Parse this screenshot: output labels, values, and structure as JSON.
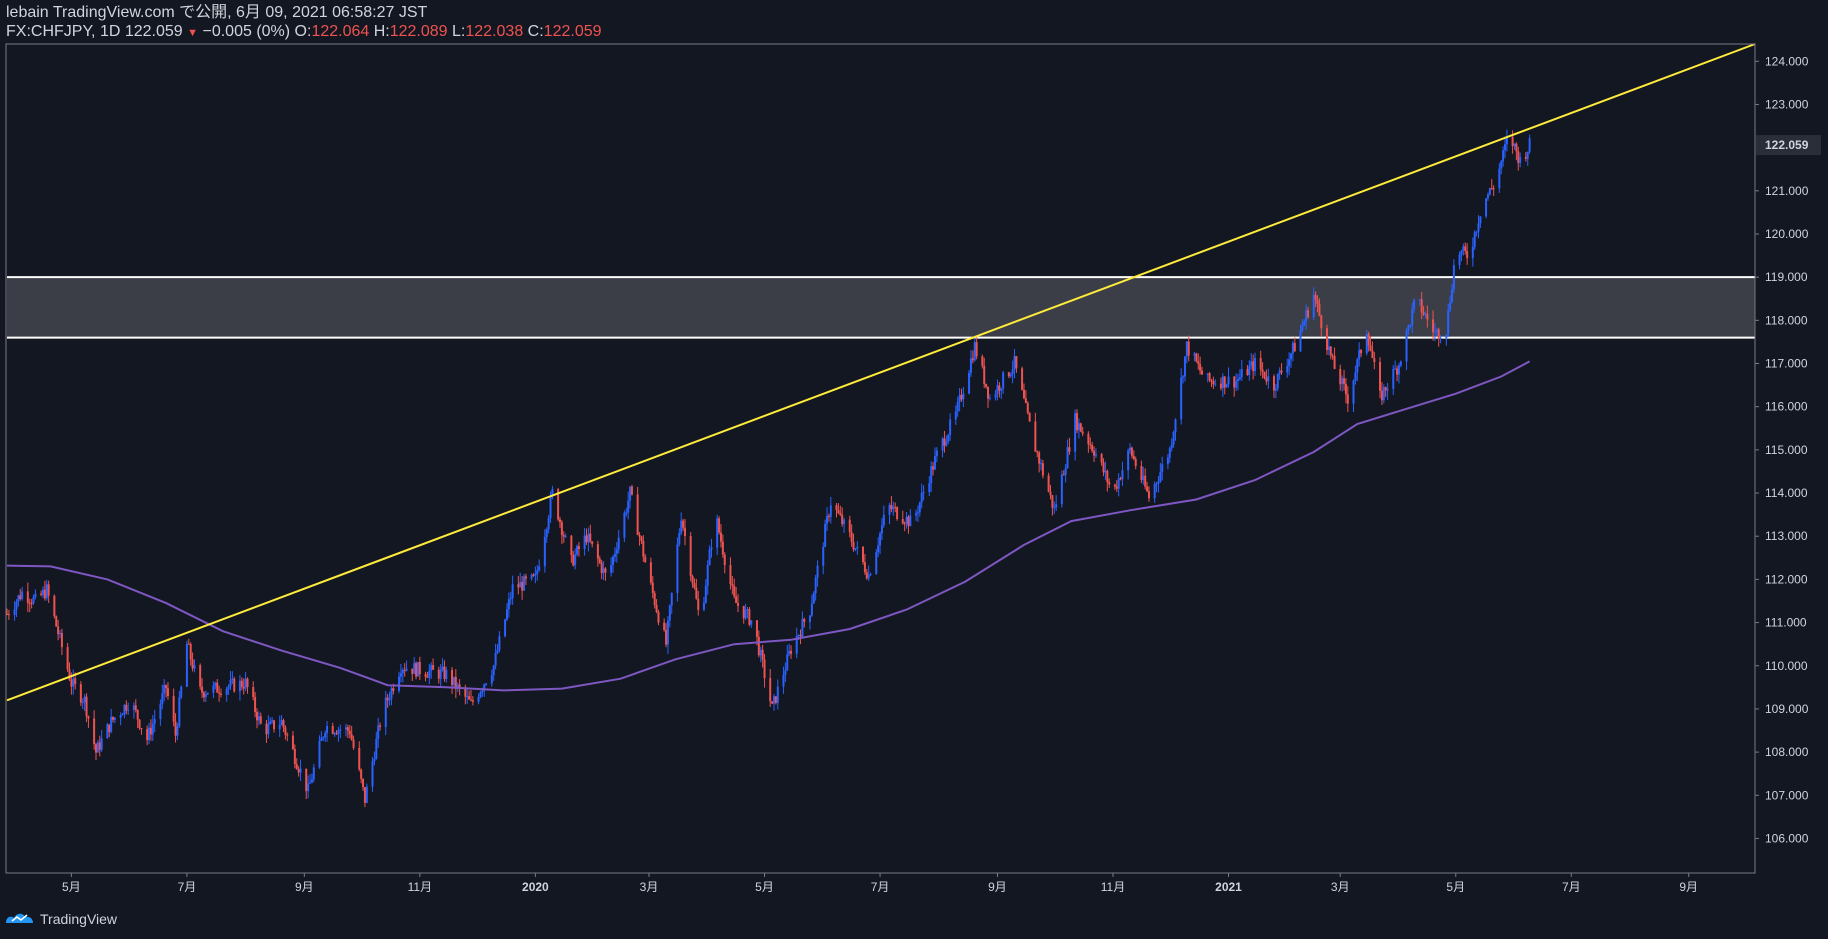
{
  "header": {
    "line1": "lebain TradingView.com で公開, 6月 09, 2021 06:58:27 JST",
    "symbol": "FX:CHFJPY, 1D 122.059",
    "arrow": "▼",
    "change": "−0.005 (0%)",
    "o_label": "O:",
    "o_value": "122.064",
    "h_label": "H:",
    "h_value": "122.089",
    "l_label": "L:",
    "l_value": "122.038",
    "c_label": "C:",
    "c_value": "122.059"
  },
  "footer": {
    "brand": "TradingView"
  },
  "colors": {
    "background": "#131722",
    "up": "#2962ff",
    "down": "#ef5350",
    "trendline": "#ffeb3b",
    "ma": "#7e57c2",
    "zone": "#3b3e47",
    "zone_border": "#ffffff"
  },
  "chart_data": {
    "type": "candlestick",
    "symbol": "FX:CHFJPY",
    "timeframe": "1D",
    "y_range": [
      105.2,
      124.4
    ],
    "y_ticks": [
      "124.000",
      "123.000",
      "121.000",
      "120.000",
      "119.000",
      "118.000",
      "117.000",
      "116.000",
      "115.000",
      "114.000",
      "113.000",
      "112.000",
      "111.000",
      "110.000",
      "109.000",
      "108.000",
      "107.000",
      "106.000"
    ],
    "last_price_label": "122.059",
    "last_price": 122.059,
    "x_ticks": [
      {
        "label": "5月",
        "date": "2019-05-01"
      },
      {
        "label": "7月",
        "date": "2019-07-01"
      },
      {
        "label": "9月",
        "date": "2019-09-01"
      },
      {
        "label": "11月",
        "date": "2019-11-01"
      },
      {
        "label": "2020",
        "date": "2020-01-01",
        "bold": true
      },
      {
        "label": "3月",
        "date": "2020-03-01"
      },
      {
        "label": "5月",
        "date": "2020-05-01"
      },
      {
        "label": "7月",
        "date": "2020-07-01"
      },
      {
        "label": "9月",
        "date": "2020-09-01"
      },
      {
        "label": "11月",
        "date": "2020-11-01"
      },
      {
        "label": "2021",
        "date": "2021-01-01",
        "bold": true
      },
      {
        "label": "3月",
        "date": "2021-03-01"
      },
      {
        "label": "5月",
        "date": "2021-05-01"
      },
      {
        "label": "7月",
        "date": "2021-07-01"
      },
      {
        "label": "9月",
        "date": "2021-09-01"
      }
    ],
    "x_range": [
      "2019-03-28",
      "2021-10-06"
    ],
    "zone": [
      117.6,
      119.0
    ],
    "trendline": [
      {
        "date": "2019-03-28",
        "price": 109.2
      },
      {
        "date": "2021-10-06",
        "price": 124.4
      }
    ],
    "moving_average": [
      {
        "date": "2019-03-28",
        "price": 112.32
      },
      {
        "date": "2019-04-20",
        "price": 112.3
      },
      {
        "date": "2019-05-20",
        "price": 112.0
      },
      {
        "date": "2019-06-20",
        "price": 111.45
      },
      {
        "date": "2019-07-20",
        "price": 110.8
      },
      {
        "date": "2019-08-20",
        "price": 110.35
      },
      {
        "date": "2019-09-20",
        "price": 109.95
      },
      {
        "date": "2019-10-15",
        "price": 109.55
      },
      {
        "date": "2019-11-15",
        "price": 109.5
      },
      {
        "date": "2019-12-15",
        "price": 109.43
      },
      {
        "date": "2020-01-15",
        "price": 109.47
      },
      {
        "date": "2020-02-15",
        "price": 109.7
      },
      {
        "date": "2020-03-15",
        "price": 110.15
      },
      {
        "date": "2020-04-15",
        "price": 110.5
      },
      {
        "date": "2020-05-15",
        "price": 110.6
      },
      {
        "date": "2020-06-15",
        "price": 110.85
      },
      {
        "date": "2020-07-15",
        "price": 111.3
      },
      {
        "date": "2020-08-15",
        "price": 111.95
      },
      {
        "date": "2020-09-15",
        "price": 112.8
      },
      {
        "date": "2020-10-10",
        "price": 113.35
      },
      {
        "date": "2020-11-10",
        "price": 113.6
      },
      {
        "date": "2020-12-15",
        "price": 113.85
      },
      {
        "date": "2021-01-15",
        "price": 114.3
      },
      {
        "date": "2021-02-15",
        "price": 114.95
      },
      {
        "date": "2021-03-10",
        "price": 115.6
      },
      {
        "date": "2021-04-05",
        "price": 115.95
      },
      {
        "date": "2021-05-01",
        "price": 116.3
      },
      {
        "date": "2021-05-25",
        "price": 116.7
      },
      {
        "date": "2021-06-09",
        "price": 117.05
      }
    ],
    "price_path": [
      {
        "date": "2019-03-28",
        "price": 111.2
      },
      {
        "date": "2019-04-05",
        "price": 111.7
      },
      {
        "date": "2019-04-12",
        "price": 111.5
      },
      {
        "date": "2019-04-18",
        "price": 111.75
      },
      {
        "date": "2019-04-25",
        "price": 110.6
      },
      {
        "date": "2019-05-01",
        "price": 109.6
      },
      {
        "date": "2019-05-08",
        "price": 109.2
      },
      {
        "date": "2019-05-14",
        "price": 108.0
      },
      {
        "date": "2019-05-22",
        "price": 108.7
      },
      {
        "date": "2019-06-01",
        "price": 109.2
      },
      {
        "date": "2019-06-10",
        "price": 108.3
      },
      {
        "date": "2019-06-20",
        "price": 109.5
      },
      {
        "date": "2019-06-25",
        "price": 108.4
      },
      {
        "date": "2019-07-01",
        "price": 110.5
      },
      {
        "date": "2019-07-08",
        "price": 109.4
      },
      {
        "date": "2019-07-20",
        "price": 109.5
      },
      {
        "date": "2019-08-01",
        "price": 109.6
      },
      {
        "date": "2019-08-10",
        "price": 108.5
      },
      {
        "date": "2019-08-20",
        "price": 108.7
      },
      {
        "date": "2019-09-03",
        "price": 107.1
      },
      {
        "date": "2019-09-12",
        "price": 108.6
      },
      {
        "date": "2019-09-25",
        "price": 108.5
      },
      {
        "date": "2019-10-03",
        "price": 106.9
      },
      {
        "date": "2019-10-12",
        "price": 108.9
      },
      {
        "date": "2019-10-22",
        "price": 110.0
      },
      {
        "date": "2019-11-01",
        "price": 109.9
      },
      {
        "date": "2019-11-15",
        "price": 109.8
      },
      {
        "date": "2019-11-28",
        "price": 109.1
      },
      {
        "date": "2019-12-10",
        "price": 110.0
      },
      {
        "date": "2019-12-20",
        "price": 111.8
      },
      {
        "date": "2020-01-01",
        "price": 112.0
      },
      {
        "date": "2020-01-10",
        "price": 114.0
      },
      {
        "date": "2020-01-20",
        "price": 112.4
      },
      {
        "date": "2020-01-28",
        "price": 113.0
      },
      {
        "date": "2020-02-08",
        "price": 112.0
      },
      {
        "date": "2020-02-20",
        "price": 114.0
      },
      {
        "date": "2020-03-01",
        "price": 112.0
      },
      {
        "date": "2020-03-10",
        "price": 110.5
      },
      {
        "date": "2020-03-18",
        "price": 113.5
      },
      {
        "date": "2020-03-28",
        "price": 111.0
      },
      {
        "date": "2020-04-05",
        "price": 113.5
      },
      {
        "date": "2020-04-15",
        "price": 111.5
      },
      {
        "date": "2020-04-25",
        "price": 111.0
      },
      {
        "date": "2020-05-05",
        "price": 109.0
      },
      {
        "date": "2020-05-15",
        "price": 110.4
      },
      {
        "date": "2020-05-25",
        "price": 111.3
      },
      {
        "date": "2020-06-05",
        "price": 113.8
      },
      {
        "date": "2020-06-15",
        "price": 113.0
      },
      {
        "date": "2020-06-25",
        "price": 112.1
      },
      {
        "date": "2020-07-05",
        "price": 113.7
      },
      {
        "date": "2020-07-18",
        "price": 113.3
      },
      {
        "date": "2020-08-01",
        "price": 115.0
      },
      {
        "date": "2020-08-10",
        "price": 115.8
      },
      {
        "date": "2020-08-20",
        "price": 117.4
      },
      {
        "date": "2020-08-28",
        "price": 116.2
      },
      {
        "date": "2020-09-10",
        "price": 117.0
      },
      {
        "date": "2020-09-20",
        "price": 115.2
      },
      {
        "date": "2020-10-01",
        "price": 113.6
      },
      {
        "date": "2020-10-12",
        "price": 115.7
      },
      {
        "date": "2020-10-22",
        "price": 115.0
      },
      {
        "date": "2020-11-01",
        "price": 114.0
      },
      {
        "date": "2020-11-10",
        "price": 115.0
      },
      {
        "date": "2020-11-20",
        "price": 113.9
      },
      {
        "date": "2020-12-01",
        "price": 115.0
      },
      {
        "date": "2020-12-10",
        "price": 117.4
      },
      {
        "date": "2020-12-20",
        "price": 116.6
      },
      {
        "date": "2021-01-05",
        "price": 116.6
      },
      {
        "date": "2021-01-15",
        "price": 117.0
      },
      {
        "date": "2021-01-25",
        "price": 116.5
      },
      {
        "date": "2021-02-05",
        "price": 117.4
      },
      {
        "date": "2021-02-15",
        "price": 118.6
      },
      {
        "date": "2021-02-25",
        "price": 117.0
      },
      {
        "date": "2021-03-05",
        "price": 116.2
      },
      {
        "date": "2021-03-15",
        "price": 117.8
      },
      {
        "date": "2021-03-22",
        "price": 116.2
      },
      {
        "date": "2021-04-01",
        "price": 117.0
      },
      {
        "date": "2021-04-10",
        "price": 118.5
      },
      {
        "date": "2021-04-20",
        "price": 117.7
      },
      {
        "date": "2021-04-26",
        "price": 117.8
      },
      {
        "date": "2021-05-01",
        "price": 119.6
      },
      {
        "date": "2021-05-08",
        "price": 119.5
      },
      {
        "date": "2021-05-15",
        "price": 120.7
      },
      {
        "date": "2021-05-22",
        "price": 121.2
      },
      {
        "date": "2021-05-29",
        "price": 122.3
      },
      {
        "date": "2021-06-04",
        "price": 121.7
      },
      {
        "date": "2021-06-09",
        "price": 122.06
      }
    ]
  }
}
